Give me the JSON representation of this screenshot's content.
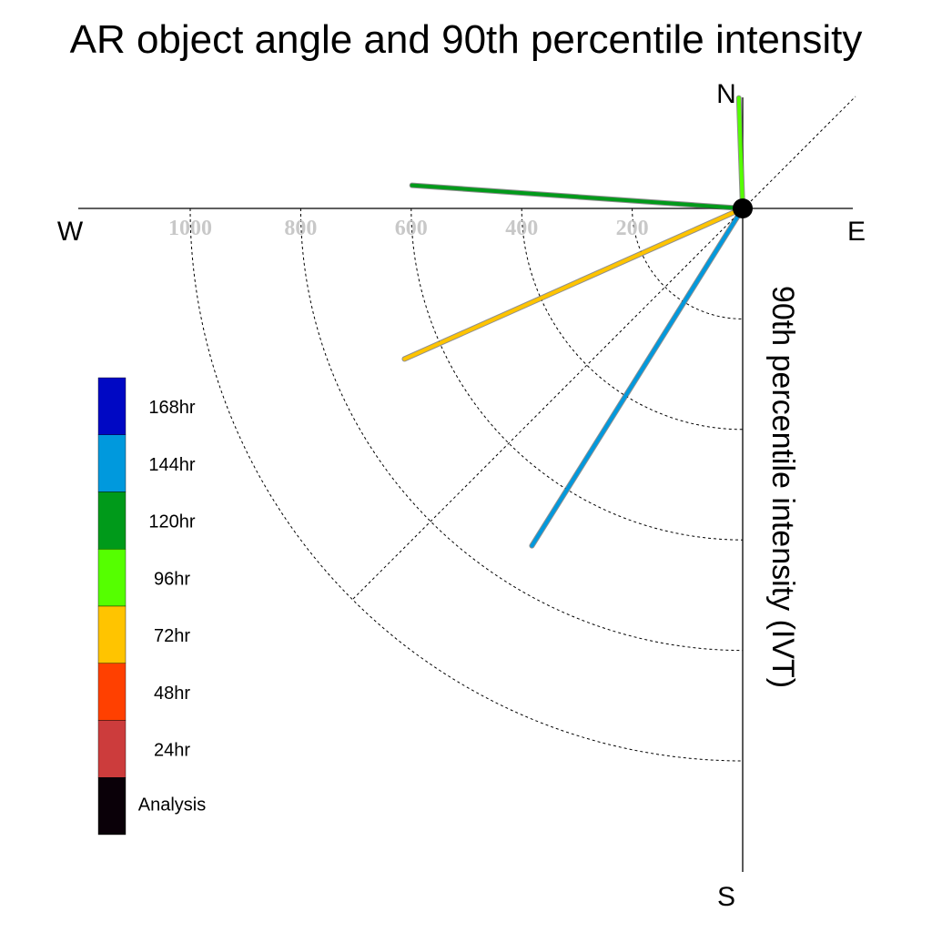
{
  "chart_data": {
    "type": "polar-line",
    "title": "AR object angle and 90th percentile intensity",
    "rlabel": "90th percentile intensity (IVT)",
    "radial_ticks": [
      "200",
      "400",
      "600",
      "800",
      "1000"
    ],
    "radial_tick_values": [
      200,
      400,
      600,
      800,
      1000
    ],
    "rlim": [
      0,
      1200
    ],
    "directions": {
      "north": "N",
      "south": "S",
      "east": "E",
      "west": "W"
    },
    "angle_convention": "degrees clockwise from north",
    "grid": true,
    "series": [
      {
        "name": "96hr",
        "color": "#55ff00",
        "angle": 358,
        "intensity": 200
      },
      {
        "name": "120hr",
        "color": "#009a1a",
        "angle": 274,
        "intensity": 600
      },
      {
        "name": "72hr",
        "color": "#ffc400",
        "angle": 246,
        "intensity": 670
      },
      {
        "name": "144hr",
        "color": "#0099dd",
        "angle": 212,
        "intensity": 720
      }
    ],
    "legend": {
      "placement": "left",
      "items": [
        {
          "label": "168hr",
          "color": "#0008c4"
        },
        {
          "label": "144hr",
          "color": "#0099dd"
        },
        {
          "label": "120hr",
          "color": "#009a1a"
        },
        {
          "label": "96hr",
          "color": "#55ff00"
        },
        {
          "label": "72hr",
          "color": "#ffc400"
        },
        {
          "label": "48hr",
          "color": "#ff4000"
        },
        {
          "label": "24hr",
          "color": "#cc3c3c"
        },
        {
          "label": "Analysis",
          "color": "#0a0008"
        }
      ]
    }
  }
}
